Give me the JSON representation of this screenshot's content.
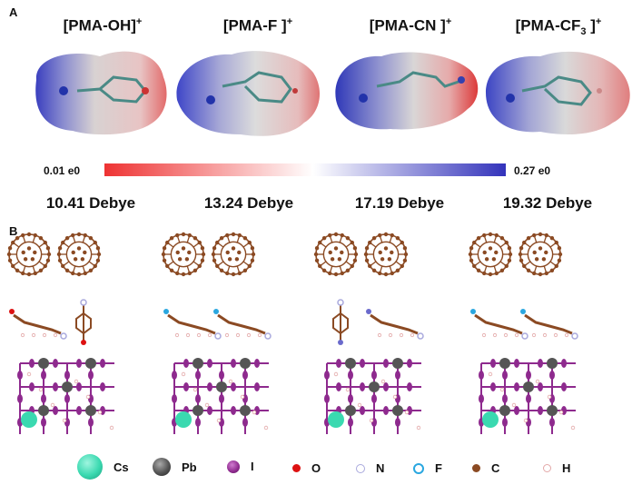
{
  "panel_a_label": "A",
  "panel_b_label": "B",
  "molecules": [
    {
      "base": "[PMA-OH",
      "sub": "",
      "close": "]",
      "charge": "+",
      "dipole": "10.41 Debye",
      "substituent": "O"
    },
    {
      "base": "[PMA-F ",
      "sub": "",
      "close": "]",
      "charge": "+",
      "dipole": "13.24 Debye",
      "substituent": "F"
    },
    {
      "base": "[PMA-CN ",
      "sub": "",
      "close": "]",
      "charge": "+",
      "dipole": "17.19 Debye",
      "substituent": "CN"
    },
    {
      "base": "[PMA-CF",
      "sub": "3",
      "close": " ]",
      "charge": "+",
      "dipole": "19.32 Debye",
      "substituent": "CF3"
    }
  ],
  "colorbar": {
    "min_label": "0.01 e0",
    "max_label": "0.27 e0",
    "low_color": "#ee3333",
    "mid_color": "#ffffff",
    "high_color": "#3333bb"
  },
  "legend": [
    {
      "label": "Cs",
      "color": "#3ad9b0",
      "size": "large"
    },
    {
      "label": "Pb",
      "color": "#555555",
      "size": "medium"
    },
    {
      "label": "I",
      "color": "#8e2a8e",
      "size": "small"
    },
    {
      "label": "O",
      "color": "#dd1111",
      "size": "tiny"
    },
    {
      "label": "N",
      "color": "#a9a9dd",
      "size": "tiny"
    },
    {
      "label": "F",
      "color": "#2aa7e0",
      "size": "tiny"
    },
    {
      "label": "C",
      "color": "#8b4a23",
      "size": "tiny"
    },
    {
      "label": "H",
      "color": "#f2c9c9",
      "size": "tiny"
    }
  ]
}
